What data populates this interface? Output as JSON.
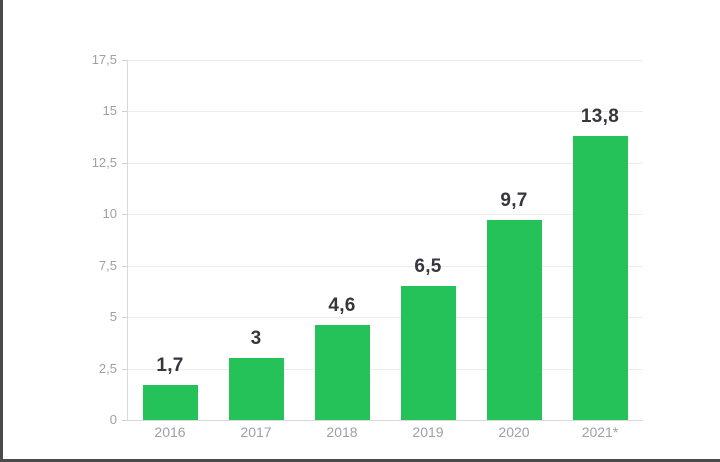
{
  "frame": {
    "left_strip_color": "#4b4b4d",
    "bottom_line_color": "#4b4b4d",
    "background_color": "#ffffff"
  },
  "chart_data": {
    "type": "bar",
    "categories": [
      "2016",
      "2017",
      "2018",
      "2019",
      "2020",
      "2021*"
    ],
    "values": [
      1.7,
      3,
      4.6,
      6.5,
      9.7,
      13.8
    ],
    "value_labels": [
      "1,7",
      "3",
      "4,6",
      "6,5",
      "9,7",
      "13,8"
    ],
    "title": "",
    "xlabel": "",
    "ylabel": "",
    "ylim": [
      0,
      17.5
    ],
    "y_ticks": [
      0,
      2.5,
      5,
      7.5,
      10,
      12.5,
      15,
      17.5
    ],
    "y_tick_labels": [
      "0",
      "2,5",
      "5",
      "7,5",
      "10",
      "12,5",
      "15",
      "17,5"
    ],
    "grid": "horizontal",
    "legend": "none",
    "bar_color": "#25c25a",
    "gridline_color": "#ececec",
    "axis_line_color": "#d9d9d9",
    "y_tick_label_color": "#9da0a4",
    "x_tick_label_color": "#9da0a4",
    "value_label_color": "#36363c"
  }
}
